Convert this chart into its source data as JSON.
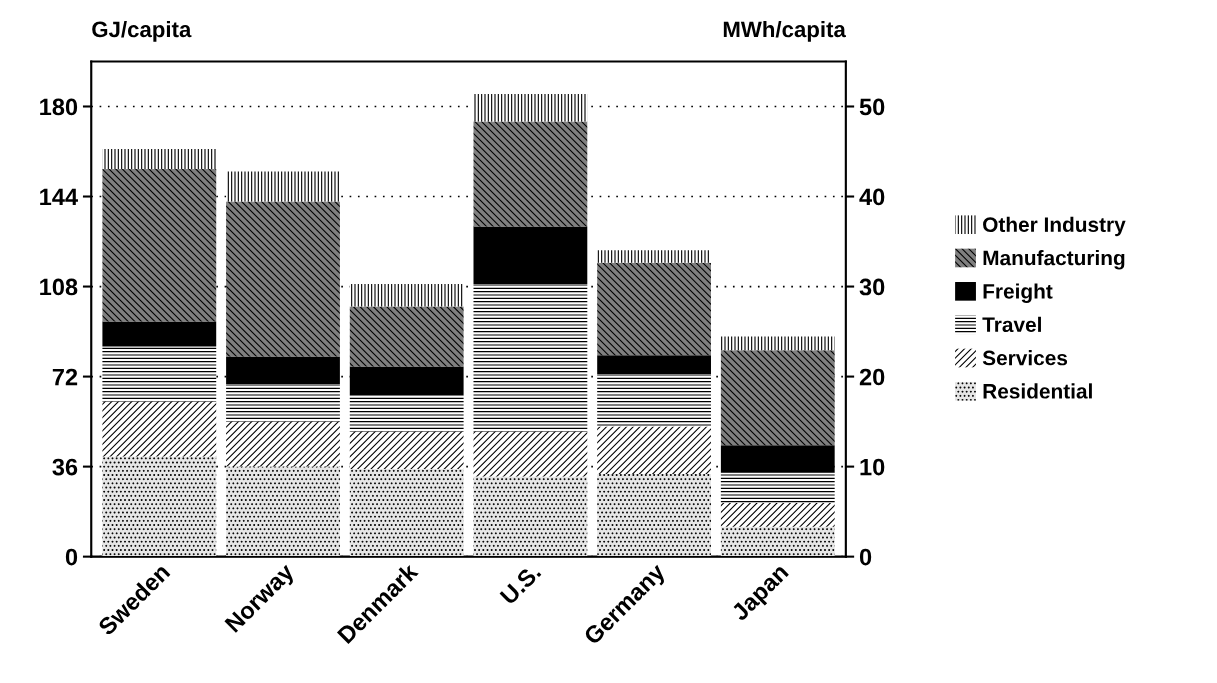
{
  "chart_data": {
    "type": "bar",
    "stacked": true,
    "ylabel": "GJ/capita",
    "y2label": "MWh/capita",
    "categories": [
      "Sweden",
      "Norway",
      "Denmark",
      "U.S.",
      "Germany",
      "Japan"
    ],
    "series": [
      {
        "name": "Residential",
        "color": "#e6e6e6",
        "values": [
          40,
          36,
          35,
          32,
          33,
          12
        ]
      },
      {
        "name": "Services",
        "color": "#ffffff",
        "values": [
          22,
          18,
          15,
          18,
          19,
          9.5
        ]
      },
      {
        "name": "Travel",
        "color": "#ffffff",
        "values": [
          22,
          15,
          14.5,
          59,
          21,
          12
        ]
      },
      {
        "name": "Freight",
        "color": "#000000",
        "values": [
          10,
          11,
          11.5,
          23,
          7.5,
          11
        ]
      },
      {
        "name": "Manufacturing",
        "color": "#7f7f7f",
        "values": [
          61,
          62,
          24,
          42,
          37,
          38
        ]
      },
      {
        "name": "Other Industry",
        "color": "#ffffff",
        "values": [
          8,
          12,
          9,
          11,
          5,
          5.5
        ]
      }
    ],
    "ylim": [
      0,
      198
    ],
    "yticks": [
      0,
      36,
      72,
      108,
      144,
      180
    ],
    "y2lim": [
      0,
      55
    ],
    "y2ticks": [
      0,
      10,
      20,
      30,
      40,
      50
    ],
    "grid": "y",
    "legend": "right"
  }
}
